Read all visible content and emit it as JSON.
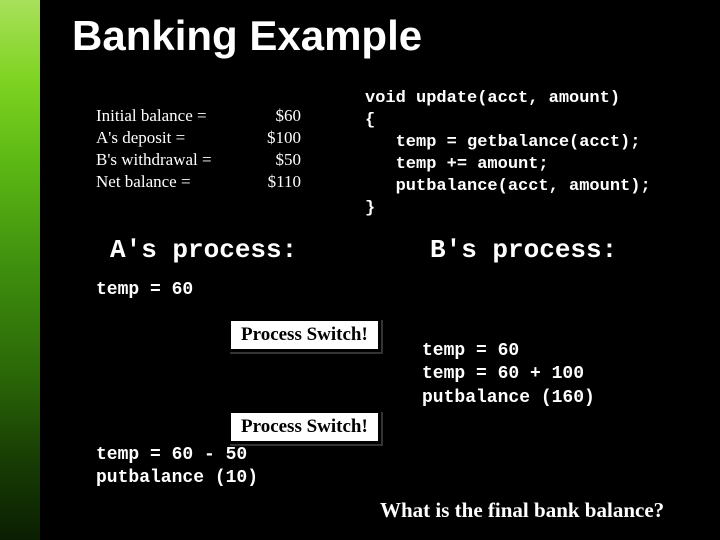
{
  "slide": {
    "title": "Banking Example",
    "background_color": "#000000",
    "text_color": "#ffffff",
    "gradient_colors": [
      "#a8e05a",
      "#7ed321",
      "#5cb814",
      "#3e8e0e",
      "#2a6608",
      "#183d04",
      "#0a1f02"
    ]
  },
  "balance_table": {
    "rows": [
      {
        "label": "Initial balance =",
        "value": "$60"
      },
      {
        "label": "A's deposit =",
        "value": "$100"
      },
      {
        "label": "B's withdrawal =",
        "value": "$50"
      },
      {
        "label": "Net balance =",
        "value": "$110"
      }
    ],
    "label_fontsize": 17
  },
  "code": {
    "text": "void update(acct, amount)\n{\n   temp = getbalance(acct);\n   temp += amount;\n   putbalance(acct, amount);\n}",
    "font": "Courier New",
    "fontsize": 17
  },
  "process_a": {
    "title": "A's process:",
    "step1": "temp = 60",
    "step2": "temp = 60 - 50\nputbalance (10)",
    "title_fontsize": 26
  },
  "process_b": {
    "title": "B's process:",
    "steps": "temp = 60\ntemp = 60 + 100\nputbalance (160)",
    "title_fontsize": 26
  },
  "switch_box": {
    "label1": "Process Switch!",
    "label2": "Process Switch!",
    "bg_color": "#ffffff",
    "text_color": "#000000",
    "border_color": "#000000",
    "fontsize": 19
  },
  "final_question": "What is the final bank balance?"
}
